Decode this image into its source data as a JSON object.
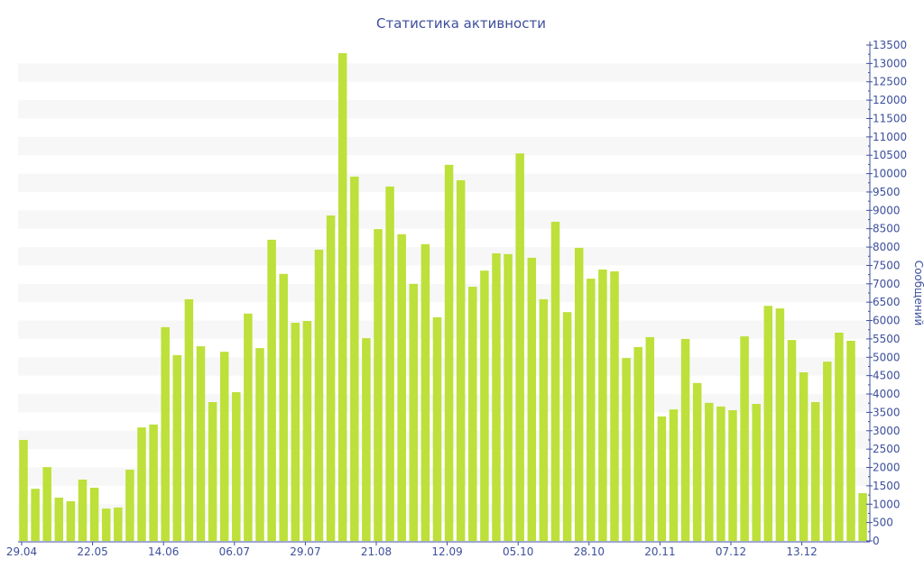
{
  "chart_data": {
    "type": "bar",
    "title": "Статистика активности",
    "ylabel": "Сообщений",
    "xlabel": "",
    "ylim": [
      0,
      13500
    ],
    "ytick_step": 500,
    "grid": "alternating horizontal bands",
    "y_axis_side": "right",
    "bar_color": "#bde03a",
    "text_color": "#3d4f9c",
    "x_tick_labels": [
      "29.04",
      "22.05",
      "14.06",
      "06.07",
      "29.07",
      "21.08",
      "12.09",
      "05.10",
      "28.10",
      "20.11",
      "07.12",
      "13.12"
    ],
    "x_tick_every_n_bars": 6,
    "values": [
      2750,
      1420,
      2010,
      1180,
      1080,
      1670,
      1450,
      880,
      910,
      1940,
      3090,
      3170,
      5820,
      5060,
      6580,
      5300,
      3780,
      5150,
      4050,
      6190,
      5250,
      8200,
      7270,
      5940,
      5990,
      7930,
      8860,
      13280,
      9920,
      5520,
      8490,
      9650,
      8350,
      7000,
      8080,
      6090,
      10240,
      9820,
      6920,
      7360,
      7830,
      7810,
      10550,
      7710,
      6580,
      8690,
      6230,
      7980,
      7140,
      7390,
      7340,
      4980,
      5280,
      5550,
      3390,
      3580,
      5500,
      4300,
      3760,
      3660,
      3560,
      5570,
      3730,
      6400,
      6330,
      5470,
      4590,
      3780,
      4880,
      5670,
      5450,
      1300
    ]
  }
}
